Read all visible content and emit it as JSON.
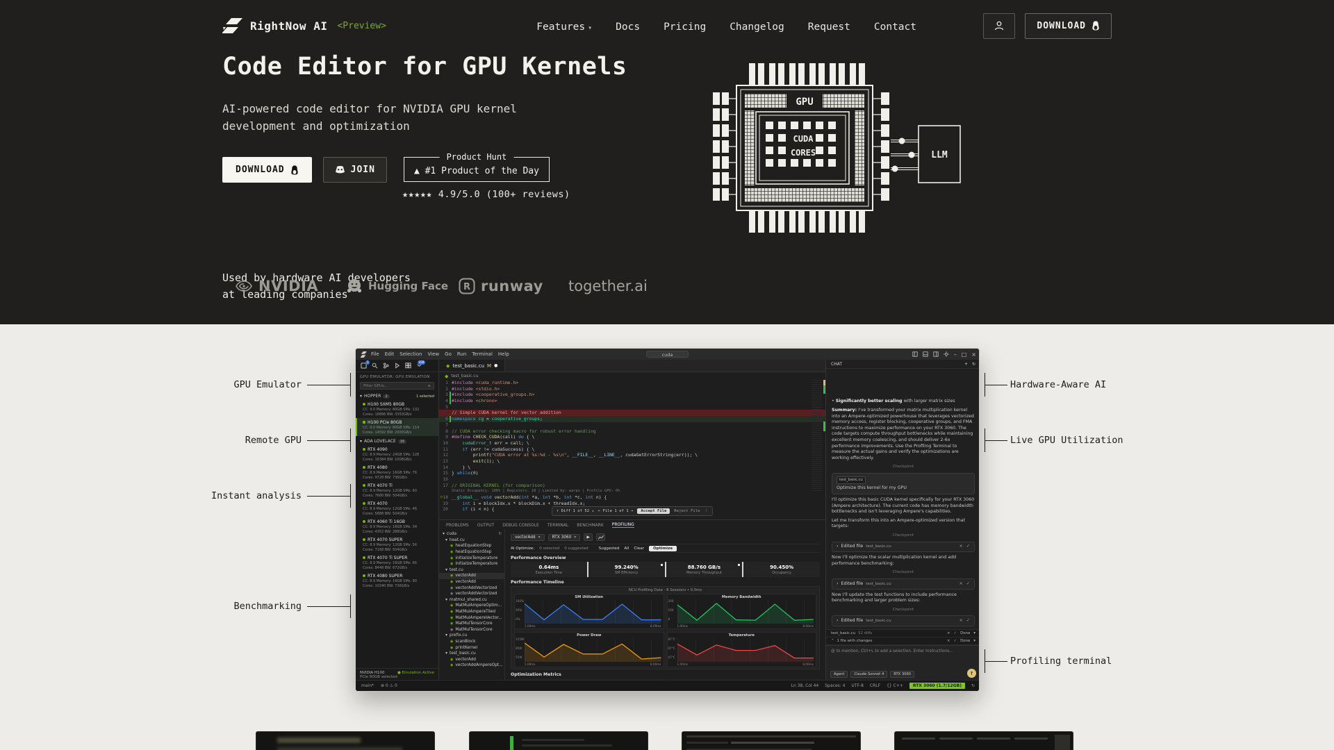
{
  "colors": {
    "hero_bg": "#201f1d",
    "section_bg": "#edece8",
    "accent_green": "#76b900",
    "preview_green": "#7aa83f",
    "chart_blue": "#3b82f6",
    "chart_green": "#22c55e",
    "chart_orange": "#f59e0b",
    "chart_red": "#ef4444",
    "status_badge_green": "#7ec425"
  },
  "nav": {
    "brand": "RightNow AI",
    "preview": "<Preview>",
    "items": [
      "Features",
      "Docs",
      "Pricing",
      "Changelog",
      "Request",
      "Contact"
    ],
    "download_label": "DOWNLOAD"
  },
  "hero": {
    "title": "Code Editor for GPU Kernels",
    "subtitle": "AI-powered code editor for NVIDIA GPU kernel development and optimization",
    "download_label": "DOWNLOAD",
    "join_label": "JOIN",
    "ph_title": "Product Hunt",
    "ph_line": "▲ #1 Product of the Day",
    "rating": "★★★★★ 4.9/5.0 (100+ reviews)"
  },
  "diagram": {
    "gpu": "GPU",
    "cuda": "CUDA",
    "cores": "CORES",
    "llm": "LLM"
  },
  "logos": {
    "caption_line1": "Used by hardware AI developers",
    "caption_line2": "at leading companies",
    "nvidia": "NVIDIA",
    "huggingface": "Hugging Face",
    "runway": "runway",
    "together": "together.ai"
  },
  "callouts": {
    "left": [
      "GPU Emulator",
      "Remote GPU",
      "Instant analysis",
      "Benchmarking"
    ],
    "right": [
      "Hardware-Aware AI",
      "Live GPU Utilization",
      "Profiling terminal"
    ]
  },
  "app": {
    "menus": [
      "File",
      "Edit",
      "Selection",
      "View",
      "Go",
      "Run",
      "Terminal",
      "Help"
    ],
    "window_title": "cuda",
    "activity_badges": {
      "first": "1",
      "last": "438"
    },
    "tab": {
      "name": "test_basic.cu",
      "modified": "M"
    },
    "breadcrumb": "test_basic.cu",
    "sidebar": {
      "header": "GPU EMULATOR: GPU EMULATION",
      "filter_placeholder": "Filter GPUs...",
      "groups": [
        {
          "name": "HOPPER",
          "count": "2",
          "note": "1 selected",
          "gpus": [
            {
              "name": "H100 SXM5 80GB",
              "cc": "9.0",
              "mem": "80GB",
              "sms": "132",
              "cores": "16896",
              "bw": "3350GB/s"
            },
            {
              "name": "H100 PCIe 80GB",
              "cc": "9.0",
              "mem": "80GB",
              "sms": "114",
              "cores": "14592",
              "bw": "2000GB/s",
              "selected": true
            }
          ]
        },
        {
          "name": "ADA LOVELACE",
          "count": "16",
          "note": "",
          "gpus": [
            {
              "name": "RTX 4090",
              "cc": "8.9",
              "mem": "24GB",
              "sms": "128",
              "cores": "16384",
              "bw": "1008GB/s"
            },
            {
              "name": "RTX 4080",
              "cc": "8.9",
              "mem": "16GB",
              "sms": "76",
              "cores": "9728",
              "bw": "736GB/s"
            },
            {
              "name": "RTX 4070 Ti",
              "cc": "8.9",
              "mem": "12GB",
              "sms": "60",
              "cores": "7680",
              "bw": "504GB/s"
            },
            {
              "name": "RTX 4070",
              "cc": "8.9",
              "mem": "12GB",
              "sms": "46",
              "cores": "5888",
              "bw": "504GB/s"
            },
            {
              "name": "RTX 4060 Ti 16GB",
              "cc": "8.9",
              "mem": "16GB",
              "sms": "34",
              "cores": "4352",
              "bw": "288GB/s"
            },
            {
              "name": "RTX 4070 SUPER",
              "cc": "8.9",
              "mem": "12GB",
              "sms": "56",
              "cores": "7168",
              "bw": "504GB/s"
            },
            {
              "name": "RTX 4070 Ti SUPER",
              "cc": "8.9",
              "mem": "16GB",
              "sms": "66",
              "cores": "8448",
              "bw": "672GB/s"
            },
            {
              "name": "RTX 4080 SUPER",
              "cc": "8.9",
              "mem": "16GB",
              "sms": "80",
              "cores": "10240",
              "bw": "736GB/s"
            }
          ]
        }
      ],
      "footer_line1": "NVIDIA H100",
      "footer_line2": "PCIe 80GB selected",
      "footer_status": "● Emulation Active"
    },
    "code": [
      {
        "n": "1",
        "s": [
          [
            "#include ",
            "pp"
          ],
          [
            "<cuda_runtime.h>",
            "str"
          ]
        ]
      },
      {
        "n": "2",
        "s": [
          [
            "#include ",
            "pp"
          ],
          [
            "<stdio.h>",
            "str"
          ]
        ]
      },
      {
        "n": "3",
        "cls": "add",
        "s": [
          [
            "#include ",
            "pp"
          ],
          [
            "<cooperative_groups.h>",
            "str"
          ]
        ]
      },
      {
        "n": "4",
        "cls": "add",
        "s": [
          [
            "#include ",
            "pp"
          ],
          [
            "<chrono>",
            "str"
          ]
        ]
      },
      {
        "n": "5",
        "s": []
      },
      {
        "n": "",
        "cls": "del",
        "badges": true,
        "s": [
          [
            "// Simple CUDA kernel for vector addition",
            "rd"
          ]
        ]
      },
      {
        "n": "6",
        "cls": "addbg",
        "s": [
          [
            "namespace ",
            "kw"
          ],
          [
            "cg",
            "ty"
          ],
          [
            " = ",
            "pl"
          ],
          [
            "cooperative_groups",
            "ty"
          ],
          [
            ";",
            "pl"
          ]
        ]
      },
      {
        "n": "7",
        "s": []
      },
      {
        "n": "8",
        "s": [
          [
            "// CUDA error checking macro for robust error handling",
            "cm"
          ]
        ]
      },
      {
        "n": "9",
        "s": [
          [
            "#define ",
            "pp"
          ],
          [
            "CHECK_CUDA",
            "fn"
          ],
          [
            "(call) ",
            "pl"
          ],
          [
            "do",
            "kw"
          ],
          [
            " { \\",
            "pl"
          ]
        ]
      },
      {
        "n": "10",
        "s": [
          [
            "    ",
            "pl"
          ],
          [
            "cudaError_t",
            "ty"
          ],
          [
            " err = call; \\",
            "pl"
          ]
        ]
      },
      {
        "n": "11",
        "s": [
          [
            "    ",
            "pl"
          ],
          [
            "if",
            "kw"
          ],
          [
            " (err != cudaSuccess) { \\",
            "pl"
          ]
        ]
      },
      {
        "n": "12",
        "s": [
          [
            "        ",
            "pl"
          ],
          [
            "printf",
            "fn"
          ],
          [
            "(",
            "pl"
          ],
          [
            "\"CUDA error at %s:%d - %s\\n\"",
            "str"
          ],
          [
            ", ",
            "pl"
          ],
          [
            "__FILE__",
            "vr"
          ],
          [
            ", ",
            "pl"
          ],
          [
            "__LINE__",
            "vr"
          ],
          [
            ", cudaGetErrorString(err)); \\",
            "pl"
          ]
        ]
      },
      {
        "n": "13",
        "s": [
          [
            "        ",
            "pl"
          ],
          [
            "exit",
            "fn"
          ],
          [
            "(",
            "pl"
          ],
          [
            "1",
            "nm"
          ],
          [
            "); \\",
            "pl"
          ]
        ]
      },
      {
        "n": "14",
        "s": [
          [
            "    } \\",
            "pl"
          ]
        ]
      },
      {
        "n": "15",
        "s": [
          [
            "} ",
            "pl"
          ],
          [
            "while",
            "kw"
          ],
          [
            "(",
            "pl"
          ],
          [
            "0",
            "nm"
          ],
          [
            ")",
            "pl"
          ]
        ]
      },
      {
        "n": "16",
        "s": []
      },
      {
        "n": "17",
        "s": [
          [
            "// ORIGINAL KERNEL (for comparison)",
            "cm"
          ]
        ]
      },
      {
        "n": "",
        "cls": "lens",
        "s": [
          [
            "Static Occupancy: 100% | Registers: 18 | Limited by: warps | Profile GPU: 0%",
            "lz"
          ]
        ]
      },
      {
        "n": "18",
        "play": true,
        "s": [
          [
            "__global__",
            "ty"
          ],
          [
            " ",
            "pl"
          ],
          [
            "void",
            "kw"
          ],
          [
            " ",
            "pl"
          ],
          [
            "vectorAdd",
            "fn"
          ],
          [
            "(",
            "pl"
          ],
          [
            "int",
            "kw"
          ],
          [
            " *a, ",
            "pl"
          ],
          [
            "int",
            "kw"
          ],
          [
            " *b, ",
            "pl"
          ],
          [
            "int",
            "kw"
          ],
          [
            " *c, ",
            "pl"
          ],
          [
            "int",
            "kw"
          ],
          [
            " n) {",
            "pl"
          ]
        ]
      },
      {
        "n": "19",
        "s": [
          [
            "    ",
            "pl"
          ],
          [
            "int",
            "kw"
          ],
          [
            " i = blockIdx.x * blockDim.x + threadIdx.x;",
            "pl"
          ]
        ]
      },
      {
        "n": "20",
        "s": [
          [
            "    ",
            "pl"
          ],
          [
            "if",
            "kw"
          ],
          [
            " (i < n) {",
            "pl"
          ]
        ]
      }
    ],
    "badges": {
      "accept": "Accept Ctrl+Shift+Alt+Y",
      "reject": "Reject Ctrl+Shift+Alt+N"
    },
    "diffbar": {
      "diff": "↑ Diff 1 of 52 ↓",
      "file": "← File 1 of 1 →",
      "accept": "Accept File",
      "reject": "Reject File",
      "more": "⋮"
    },
    "panel": {
      "tabs": [
        "PROBLEMS",
        "OUTPUT",
        "DEBUG CONSOLE",
        "TERMINAL",
        "BENCHMARK",
        "PROFILING"
      ],
      "active_tab": "PROFILING",
      "tree_root": "cuda",
      "tree": [
        {
          "l": "heat.cu",
          "t": "file"
        },
        {
          "l": "heatEquationStep",
          "t": "fn"
        },
        {
          "l": "heatEquationStep",
          "t": "fn"
        },
        {
          "l": "initializeTemperature",
          "t": "fn"
        },
        {
          "l": "initializeTemperature",
          "t": "fn"
        },
        {
          "l": "test.cu",
          "t": "file"
        },
        {
          "l": "vectorAdd",
          "t": "fn",
          "sel": true
        },
        {
          "l": "vectorAdd",
          "t": "fn"
        },
        {
          "l": "vectorAddVectorized",
          "t": "fn2"
        },
        {
          "l": "vectorAddVectorized",
          "t": "fn2"
        },
        {
          "l": "matmul_shared.cu",
          "t": "file"
        },
        {
          "l": "MatMulAmpereOptim...",
          "t": "fn"
        },
        {
          "l": "MatMulAmpereTiled",
          "t": "fn"
        },
        {
          "l": "MatMulAmpereVector...",
          "t": "fn"
        },
        {
          "l": "MatMulTensorCore",
          "t": "fn"
        },
        {
          "l": "MatMulTensorCore",
          "t": "fn2"
        },
        {
          "l": "prefix.cu",
          "t": "file"
        },
        {
          "l": "scanBlock",
          "t": "fn"
        },
        {
          "l": "printKernel",
          "t": "fn"
        },
        {
          "l": "test_basic.cu",
          "t": "file"
        },
        {
          "l": "vectorAdd",
          "t": "fn"
        },
        {
          "l": "vectorAddAmpereOpt...",
          "t": "fn"
        }
      ],
      "toolbar": {
        "kernel": "vectorAdd",
        "gpu": "RTX 3060"
      },
      "ai_row": {
        "label": "AI Optimize:",
        "selected": "0 selected",
        "suggested": "0 suggested",
        "buttons": [
          "Suggested",
          "All",
          "Clear"
        ],
        "primary": "Optimize"
      },
      "overview_title": "Performance Overview",
      "metrics": [
        {
          "value": "0.64ms",
          "label": "Execution Time"
        },
        {
          "value": "99.240%",
          "label": "SM Efficiency",
          "dot": true
        },
        {
          "value": "88.760 GB/s",
          "label": "Memory Throughput",
          "dot": true
        },
        {
          "value": "90.450%",
          "label": "Occupancy"
        }
      ],
      "timeline_title": "Performance Timeline",
      "timeline_caption": "NCU Profiling Data - 8 Sessions • 0.0ms",
      "optimization_title": "Optimization Metrics",
      "opt_metrics": [
        {
          "label": "Warp Efficiency",
          "value": "● 0%"
        },
        {
          "label": "Branch Divergence",
          "value": "0%"
        }
      ]
    },
    "chat": {
      "title": "CHAT",
      "blocks": [
        {
          "t": "bullet",
          "bold": "Significantly better scaling",
          "rest": " with larger matrix sizes"
        },
        {
          "t": "summary",
          "label": "Summary:",
          "text": " I've transformed your matrix multiplication kernel into an Ampere-optimized powerhouse that leverages vectorized memory access, register blocking, cooperative groups, and FMA instructions to maximize performance on your RTX 3060. The code targets compute throughput bottlenecks while maintaining excellent memory coalescing, and should deliver 2-6x performance improvements. Use the Profiling Terminal to measure the actual gains and verify the optimizations are working effectively."
        },
        {
          "t": "checkpoint"
        },
        {
          "t": "user",
          "chip": "test_basic.cu",
          "text": "Optimize this kernel for my GPU"
        },
        {
          "t": "p",
          "text": "I'll optimize this basic CUDA kernel specifically for your RTX 3060 (Ampere architecture). The current code has memory bandwidth bottlenecks and isn't leveraging Ampere's capabilities."
        },
        {
          "t": "p",
          "text": "Let me transform this into an Ampere-optimized version that targets:"
        },
        {
          "t": "checkpoint"
        },
        {
          "t": "edited"
        },
        {
          "t": "p",
          "text": "Now I'll optimize the scalar multiplication kernel and add performance benchmarking:"
        },
        {
          "t": "checkpoint"
        },
        {
          "t": "edited"
        },
        {
          "t": "p",
          "text": "Now I'll update the test functions to include performance benchmarking and larger problem sizes:"
        },
        {
          "t": "checkpoint"
        },
        {
          "t": "edited"
        }
      ],
      "checkpoint_label": "Checkpoint",
      "edited_label": "Edited file",
      "edited_file": "test_basic.cu",
      "diffs_row": {
        "file": "test_basic.cu",
        "diffs": "52 diffs",
        "done": "Done"
      },
      "changes_row": {
        "label": "1 file with changes",
        "done": "Done"
      },
      "input_placeholder": "@ to mention, Ctrl+L to add a selection. Enter instructions...",
      "chips": [
        "Agent",
        "Claude Sonnet 4",
        "RTX 3060"
      ]
    },
    "status": {
      "branch": "main*",
      "diag": "⊗ 0  ⚠ 0",
      "right_items": [
        "Ln 38, Col 44",
        "Spaces: 4",
        "UTF-8",
        "CRLF",
        "{} C++"
      ],
      "gpu_badge": "RTX 3060 (1.7/12GB)",
      "bell": "↻"
    }
  },
  "chart_data": [
    {
      "type": "line",
      "title": "SM Utilization",
      "color": "#3b82f6",
      "y_ticks": [
        "100%",
        "50%",
        "0%"
      ],
      "x_labels": [
        "1.00ms",
        "8.00ms"
      ],
      "x": [
        0,
        1,
        2,
        3,
        4,
        5,
        6,
        7
      ],
      "values": [
        90,
        10,
        85,
        12,
        12,
        88,
        10,
        10
      ],
      "ylim": [
        0,
        100
      ],
      "legend": "none",
      "grid": true
    },
    {
      "type": "line",
      "title": "Memory Bandwidth",
      "color": "#22c55e",
      "y_ticks": [
        "200",
        "104",
        "8"
      ],
      "x_labels": [
        "1.00ms",
        "8.00ms"
      ],
      "x": [
        0,
        1,
        2,
        3,
        4,
        5,
        6,
        7
      ],
      "values": [
        85,
        8,
        92,
        10,
        8,
        88,
        8,
        12
      ],
      "ylim": [
        8,
        200
      ],
      "legend": "none",
      "grid": true
    },
    {
      "type": "line",
      "title": "Power Draw",
      "color": "#f59e0b",
      "y_ticks": [
        "115W",
        "85W",
        "55W"
      ],
      "x_labels": [
        "1.00ms",
        "8.00ms"
      ],
      "x": [
        0,
        1,
        2,
        3,
        4,
        5,
        6,
        7
      ],
      "values": [
        85,
        15,
        78,
        30,
        30,
        80,
        5,
        12
      ],
      "ylim": [
        55,
        115
      ],
      "legend": "none",
      "grid": true
    },
    {
      "type": "line",
      "title": "Temperature",
      "color": "#ef4444",
      "y_ticks": [
        "87°C",
        "67°C",
        "47°C"
      ],
      "x_labels": [
        "1.00ms",
        "8.00ms"
      ],
      "x": [
        0,
        1,
        2,
        3,
        4,
        5,
        6,
        7
      ],
      "values": [
        80,
        25,
        75,
        48,
        48,
        72,
        10,
        10
      ],
      "ylim": [
        47,
        87
      ],
      "legend": "none",
      "grid": true
    }
  ]
}
